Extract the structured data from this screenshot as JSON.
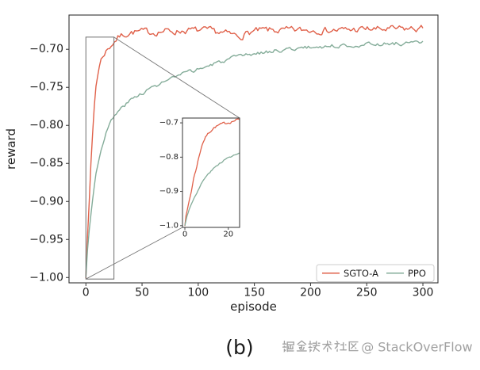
{
  "figure": {
    "caption": "(b)",
    "watermark": {
      "text": "掘金技术社区 @ StackOverFlow",
      "color": "#a2a2a2"
    },
    "background": "#ffffff"
  },
  "chart_data": {
    "type": "line",
    "title": "",
    "xlabel": "episode",
    "ylabel": "reward",
    "xlim": [
      -15,
      313.4
    ],
    "ylim": [
      -1.007,
      -0.655
    ],
    "grid": false,
    "x_ticks": [
      0,
      50,
      100,
      150,
      200,
      250,
      300
    ],
    "x_tick_labels": [
      "0",
      "50",
      "100",
      "150",
      "200",
      "250",
      "300"
    ],
    "y_ticks": [
      -0.7,
      -0.75,
      -0.8,
      -0.85,
      -0.9,
      -0.95,
      -1.0
    ],
    "y_tick_labels": [
      "−0.70",
      "−0.75",
      "−0.80",
      "−0.85",
      "−0.90",
      "−0.95",
      "−1.00"
    ],
    "legend": {
      "position": "lower right",
      "entries": [
        {
          "label": "SGTO-A",
          "color": "#e0614a"
        },
        {
          "label": "PPO",
          "color": "#84ac99"
        }
      ]
    },
    "series": [
      {
        "name": "SGTO-A",
        "color": "#e0614a",
        "noise": 0.0035,
        "keypoints": [
          [
            0,
            -1.0
          ],
          [
            0.5,
            -0.97
          ],
          [
            1,
            -0.958
          ],
          [
            2,
            -0.927
          ],
          [
            3,
            -0.9
          ],
          [
            4,
            -0.862
          ],
          [
            5,
            -0.84
          ],
          [
            6,
            -0.812
          ],
          [
            7,
            -0.786
          ],
          [
            8,
            -0.762
          ],
          [
            9,
            -0.748
          ],
          [
            10,
            -0.737
          ],
          [
            11,
            -0.729
          ],
          [
            12,
            -0.722
          ],
          [
            13,
            -0.716
          ],
          [
            14,
            -0.712
          ],
          [
            16,
            -0.706
          ],
          [
            18,
            -0.702
          ],
          [
            20,
            -0.699
          ],
          [
            22,
            -0.695
          ],
          [
            25,
            -0.69
          ],
          [
            29,
            -0.684
          ],
          [
            33,
            -0.681
          ],
          [
            37,
            -0.679
          ],
          [
            42,
            -0.6775
          ],
          [
            50,
            -0.677
          ],
          [
            60,
            -0.6775
          ],
          [
            70,
            -0.676
          ],
          [
            80,
            -0.6765
          ],
          [
            90,
            -0.675
          ],
          [
            100,
            -0.6755
          ],
          [
            110,
            -0.676
          ],
          [
            120,
            -0.678
          ],
          [
            130,
            -0.681
          ],
          [
            137,
            -0.683
          ],
          [
            143,
            -0.679
          ],
          [
            150,
            -0.6765
          ],
          [
            160,
            -0.675
          ],
          [
            175,
            -0.6755
          ],
          [
            190,
            -0.675
          ],
          [
            205,
            -0.6745
          ],
          [
            220,
            -0.675
          ],
          [
            235,
            -0.6745
          ],
          [
            250,
            -0.6735
          ],
          [
            265,
            -0.674
          ],
          [
            280,
            -0.6735
          ],
          [
            300,
            -0.673
          ]
        ]
      },
      {
        "name": "PPO",
        "color": "#84ac99",
        "noise": 0.002,
        "keypoints": [
          [
            0,
            -1.0
          ],
          [
            0.5,
            -0.985
          ],
          [
            1,
            -0.972
          ],
          [
            2,
            -0.952
          ],
          [
            3,
            -0.937
          ],
          [
            4,
            -0.922
          ],
          [
            5,
            -0.91
          ],
          [
            6,
            -0.898
          ],
          [
            7,
            -0.886
          ],
          [
            8,
            -0.873
          ],
          [
            9,
            -0.863
          ],
          [
            10,
            -0.855
          ],
          [
            11,
            -0.848
          ],
          [
            12,
            -0.841
          ],
          [
            13,
            -0.835
          ],
          [
            14,
            -0.829
          ],
          [
            15,
            -0.824
          ],
          [
            16,
            -0.818
          ],
          [
            18,
            -0.809
          ],
          [
            20,
            -0.802
          ],
          [
            22,
            -0.796
          ],
          [
            25,
            -0.789
          ],
          [
            28,
            -0.783
          ],
          [
            32,
            -0.777
          ],
          [
            36,
            -0.7715
          ],
          [
            40,
            -0.767
          ],
          [
            45,
            -0.762
          ],
          [
            50,
            -0.757
          ],
          [
            57,
            -0.752
          ],
          [
            65,
            -0.746
          ],
          [
            72,
            -0.741
          ],
          [
            80,
            -0.7365
          ],
          [
            90,
            -0.731
          ],
          [
            100,
            -0.726
          ],
          [
            110,
            -0.7215
          ],
          [
            120,
            -0.7165
          ],
          [
            130,
            -0.7125
          ],
          [
            140,
            -0.709
          ],
          [
            150,
            -0.706
          ],
          [
            160,
            -0.7035
          ],
          [
            170,
            -0.7015
          ],
          [
            180,
            -0.7
          ],
          [
            190,
            -0.6985
          ],
          [
            200,
            -0.6975
          ],
          [
            215,
            -0.696
          ],
          [
            230,
            -0.695
          ],
          [
            245,
            -0.694
          ],
          [
            260,
            -0.693
          ],
          [
            275,
            -0.6925
          ],
          [
            290,
            -0.692
          ],
          [
            300,
            -0.6915
          ]
        ]
      }
    ],
    "inset": {
      "xlim": [
        -1.1,
        25.2
      ],
      "ylim": [
        -1.005,
        -0.686
      ],
      "x_ticks": [
        0,
        20
      ],
      "x_tick_labels": [
        "0",
        "20"
      ],
      "y_ticks": [
        -0.7,
        -0.8,
        -0.9,
        -1.0
      ],
      "y_tick_labels": [
        "−0.7",
        "−0.8",
        "−0.9",
        "−1.0"
      ],
      "zoom_region_x": [
        0,
        25
      ],
      "zoom_region_y": [
        -1.002,
        -0.684
      ]
    }
  }
}
